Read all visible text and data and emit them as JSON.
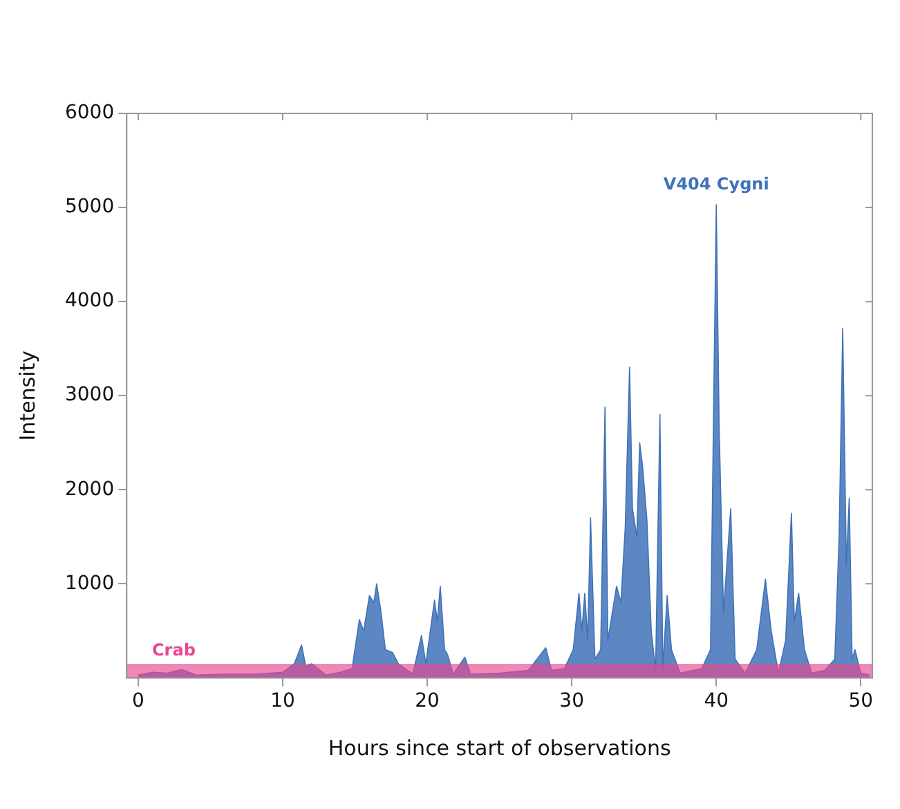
{
  "chart_data": {
    "type": "area",
    "xlabel": "Hours since start of observations",
    "ylabel": "Intensity",
    "xlim": [
      -0.8,
      50.8
    ],
    "xticks": [
      0,
      10,
      20,
      30,
      40,
      50
    ],
    "ylim": [
      0,
      6000
    ],
    "yticks": [
      1000,
      2000,
      3000,
      4000,
      5000,
      6000
    ],
    "grid": false,
    "legend": false,
    "bands": [
      {
        "axis": "y",
        "from": 0,
        "to": 150,
        "label": "Crab",
        "color": "#e8468f"
      }
    ],
    "series": [
      {
        "name": "V404 Cygni",
        "color": "#3f72b8",
        "x": [
          0,
          1,
          2,
          3,
          4,
          6,
          8,
          10,
          10.8,
          11.3,
          11.6,
          12,
          13,
          14,
          14.8,
          15.3,
          15.6,
          16.0,
          16.3,
          16.5,
          16.8,
          17.1,
          17.6,
          18,
          19,
          19.6,
          19.9,
          20.5,
          20.7,
          20.9,
          21.2,
          21.4,
          21.8,
          22.6,
          23,
          25,
          27,
          28.2,
          28.6,
          29.5,
          30.1,
          30.5,
          30.7,
          30.9,
          31.1,
          31.3,
          31.6,
          32.0,
          32.3,
          32.5,
          33.1,
          33.4,
          33.7,
          34.0,
          34.2,
          34.5,
          34.7,
          34.9,
          35.2,
          35.5,
          35.8,
          36.1,
          36.3,
          36.6,
          36.9,
          37.5,
          39,
          39.6,
          40.0,
          40.2,
          40.5,
          41.0,
          41.3,
          42,
          42.8,
          43.4,
          43.8,
          44.3,
          44.8,
          45.2,
          45.4,
          45.7,
          46.1,
          46.6,
          47.5,
          48.2,
          48.5,
          48.75,
          49.0,
          49.2,
          49.4,
          49.6,
          50,
          50.6
        ],
        "values": [
          30,
          60,
          50,
          90,
          30,
          40,
          40,
          60,
          150,
          350,
          120,
          150,
          30,
          60,
          100,
          620,
          500,
          875,
          800,
          1000,
          700,
          300,
          270,
          150,
          40,
          450,
          150,
          825,
          600,
          975,
          300,
          250,
          40,
          220,
          40,
          50,
          80,
          320,
          80,
          100,
          300,
          900,
          500,
          900,
          400,
          1700,
          200,
          300,
          2880,
          400,
          975,
          800,
          1600,
          3300,
          1800,
          1500,
          2500,
          2250,
          1680,
          500,
          80,
          2800,
          100,
          875,
          300,
          50,
          100,
          300,
          5030,
          2650,
          700,
          1800,
          200,
          50,
          300,
          1050,
          500,
          50,
          400,
          1750,
          600,
          900,
          300,
          50,
          80,
          200,
          1500,
          3715,
          1200,
          1910,
          200,
          300,
          50,
          30
        ]
      }
    ]
  }
}
